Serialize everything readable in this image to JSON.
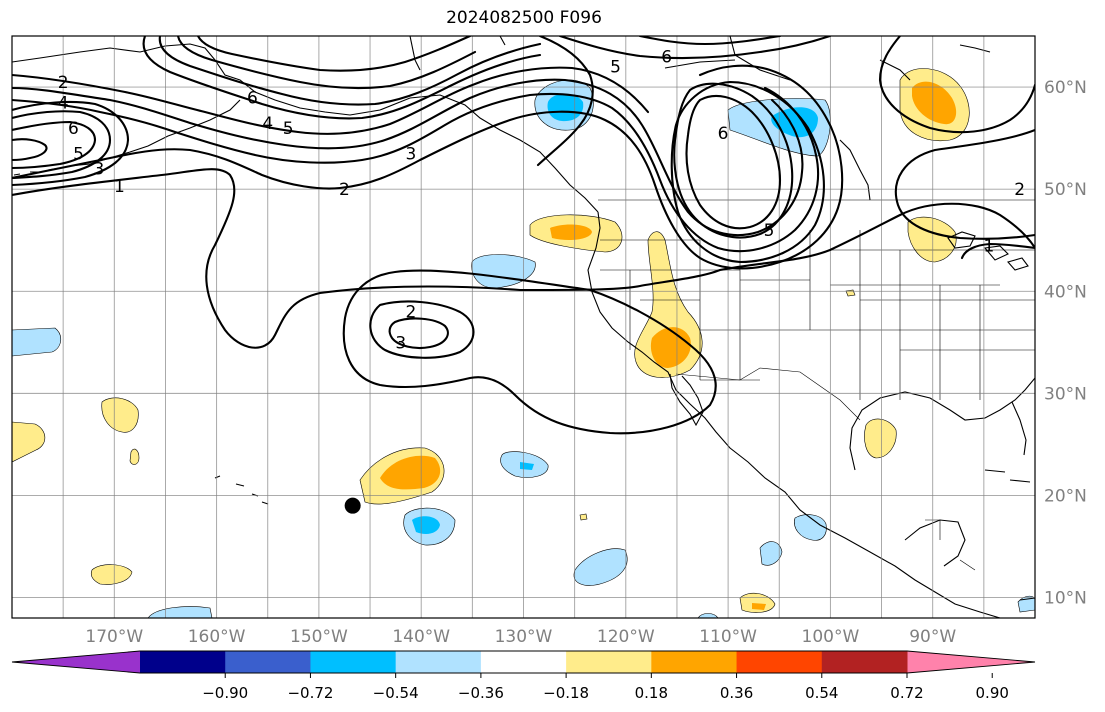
{
  "title": "2024082500 F096",
  "map": {
    "projection": "PlateCarree",
    "lon_range": [
      -180,
      -80
    ],
    "lat_range": [
      8,
      65
    ],
    "grid": true,
    "lon_ticks": [
      {
        "lon": -170,
        "label": "170°W"
      },
      {
        "lon": -160,
        "label": "160°W"
      },
      {
        "lon": -150,
        "label": "150°W"
      },
      {
        "lon": -140,
        "label": "140°W"
      },
      {
        "lon": -130,
        "label": "130°W"
      },
      {
        "lon": -120,
        "label": "120°W"
      },
      {
        "lon": -110,
        "label": "110°W"
      },
      {
        "lon": -100,
        "label": "100°W"
      },
      {
        "lon": -90,
        "label": "90°W"
      }
    ],
    "lat_ticks": [
      {
        "lat": 60,
        "label": "60°N"
      },
      {
        "lat": 50,
        "label": "50°N"
      },
      {
        "lat": 40,
        "label": "40°N"
      },
      {
        "lat": 30,
        "label": "30°N"
      },
      {
        "lat": 20,
        "label": "20°N"
      },
      {
        "lat": 10,
        "label": "10°N"
      }
    ],
    "marker": {
      "lon": -146.7,
      "lat": 19.0,
      "color": "#000000"
    },
    "contour_labels": [
      {
        "text": "2",
        "lon": -175,
        "lat": 60.5
      },
      {
        "text": "4",
        "lon": -175,
        "lat": 58.5
      },
      {
        "text": "6",
        "lon": -174,
        "lat": 56
      },
      {
        "text": "5",
        "lon": -173.5,
        "lat": 53.5
      },
      {
        "text": "3",
        "lon": -171.5,
        "lat": 52
      },
      {
        "text": "1",
        "lon": -169.5,
        "lat": 50.3
      },
      {
        "text": "6",
        "lon": -156.5,
        "lat": 59
      },
      {
        "text": "4",
        "lon": -155,
        "lat": 56.5
      },
      {
        "text": "5",
        "lon": -153,
        "lat": 56
      },
      {
        "text": "3",
        "lon": -141,
        "lat": 53.5
      },
      {
        "text": "2",
        "lon": -147.5,
        "lat": 50
      },
      {
        "text": "2",
        "lon": -141,
        "lat": 38
      },
      {
        "text": "3",
        "lon": -142,
        "lat": 35
      },
      {
        "text": "5",
        "lon": -121,
        "lat": 62
      },
      {
        "text": "6",
        "lon": -116,
        "lat": 63
      },
      {
        "text": "6",
        "lon": -110.5,
        "lat": 55.5
      },
      {
        "text": "5",
        "lon": -106,
        "lat": 46
      },
      {
        "text": "2",
        "lon": -81.5,
        "lat": 50
      },
      {
        "text": "1",
        "lon": -84.5,
        "lat": 44.5
      }
    ]
  },
  "colorbar": {
    "orientation": "horizontal",
    "extend": "both",
    "levels": [
      -0.9,
      -0.72,
      -0.54,
      -0.36,
      -0.18,
      0.18,
      0.36,
      0.54,
      0.72,
      0.9
    ],
    "tick_labels": [
      "−0.90",
      "−0.72",
      "−0.54",
      "−0.36",
      "−0.18",
      "0.18",
      "0.36",
      "0.54",
      "0.72",
      "0.90"
    ],
    "colors": [
      "#9932cc",
      "#00008b",
      "#3a5fcd",
      "#00bfff",
      "#b0e2ff",
      "#ffffff",
      "#ffec8b",
      "#ffa500",
      "#ff4500",
      "#b22222",
      "#ff82ab"
    ]
  }
}
